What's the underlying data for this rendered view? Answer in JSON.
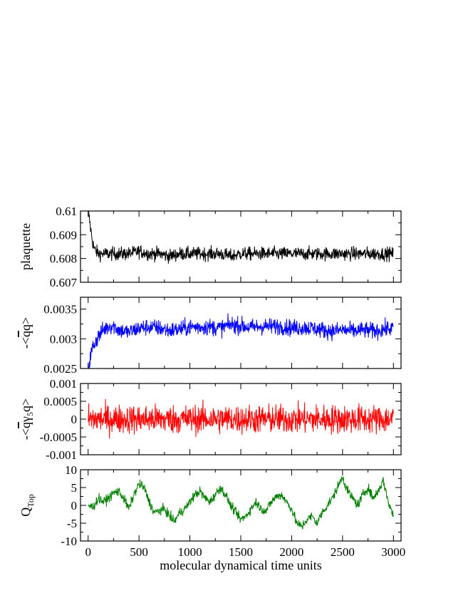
{
  "figure": {
    "xlabel": "molecular dynamical time units",
    "xlim": [
      -75,
      3075
    ],
    "xticks": [
      0,
      500,
      1000,
      1500,
      2000,
      2500,
      3000
    ],
    "xtick_labels": [
      "0",
      "500",
      "1000",
      "1500",
      "2000",
      "2500",
      "3000"
    ]
  },
  "chart_data": [
    {
      "type": "line",
      "ylabel": "plaquette",
      "ylim": [
        0.607,
        0.61
      ],
      "yticks": [
        0.607,
        0.608,
        0.609,
        0.61
      ],
      "ytick_labels": [
        "0.607",
        "0.608",
        "0.609",
        "0.61"
      ],
      "color": "#000000",
      "series": [
        {
          "x": [
            0,
            20,
            40,
            60,
            80,
            100,
            150,
            200,
            300,
            400,
            500,
            600,
            700,
            800,
            900,
            1000,
            1100,
            1200,
            1300,
            1400,
            1500,
            1600,
            1700,
            1800,
            1900,
            2000,
            2100,
            2200,
            2300,
            2400,
            2500,
            2600,
            2700,
            2800,
            2900,
            3000
          ],
          "values": [
            0.6101,
            0.6094,
            0.6088,
            0.6084,
            0.6083,
            0.6082,
            0.6082,
            0.6082,
            0.6082,
            0.6082,
            0.6083,
            0.6082,
            0.6082,
            0.6081,
            0.6082,
            0.6082,
            0.6082,
            0.6082,
            0.6082,
            0.6081,
            0.6082,
            0.6082,
            0.6082,
            0.6082,
            0.6082,
            0.6082,
            0.6082,
            0.6082,
            0.6082,
            0.6082,
            0.6082,
            0.6082,
            0.6082,
            0.6082,
            0.6082,
            0.6082
          ],
          "noise": 0.00028
        }
      ]
    },
    {
      "type": "line",
      "ylabel": "-<q̄q>",
      "ylim": [
        0.0025,
        0.0037
      ],
      "yticks": [
        0.0025,
        0.003,
        0.0035
      ],
      "ytick_labels": [
        "0.0025",
        "0.003",
        "0.0035"
      ],
      "color": "#0000ff",
      "series": [
        {
          "x": [
            0,
            25,
            50,
            100,
            150,
            200,
            250,
            300,
            400,
            500,
            600,
            700,
            800,
            900,
            1000,
            1100,
            1200,
            1300,
            1400,
            1500,
            1600,
            1700,
            1800,
            1900,
            2000,
            2100,
            2200,
            2300,
            2400,
            2500,
            2600,
            2700,
            2800,
            2900,
            3000
          ],
          "values": [
            0.0025,
            0.00272,
            0.00288,
            0.00304,
            0.00315,
            0.00321,
            0.00322,
            0.00315,
            0.00311,
            0.00318,
            0.0032,
            0.00318,
            0.00314,
            0.00316,
            0.0032,
            0.0032,
            0.0032,
            0.00318,
            0.00324,
            0.00322,
            0.00319,
            0.00321,
            0.00321,
            0.00321,
            0.00318,
            0.00319,
            0.00318,
            0.00315,
            0.00313,
            0.00315,
            0.00313,
            0.00315,
            0.00313,
            0.00316,
            0.00318
          ],
          "noise": 0.00014
        }
      ]
    },
    {
      "type": "line",
      "ylabel": "-<q̄γ5q>",
      "ylim": [
        -0.001,
        0.001
      ],
      "yticks": [
        -0.001,
        -0.0005,
        0,
        0.0005,
        0.001
      ],
      "ytick_labels": [
        "-0.001",
        "-0.0005",
        "0",
        "0.0005",
        "0.001"
      ],
      "color": "#ff0000",
      "series": [
        {
          "x": [
            0,
            500,
            1000,
            1500,
            2000,
            2500,
            3000
          ],
          "values": [
            0,
            0,
            0,
            0,
            0,
            0,
            0
          ],
          "noise": 0.0004
        }
      ]
    },
    {
      "type": "line",
      "ylabel": "QTop",
      "ylim": [
        -10,
        10
      ],
      "yticks": [
        -10,
        -5,
        0,
        5,
        10
      ],
      "ytick_labels": [
        "-10",
        "-5",
        "0",
        "5",
        "10"
      ],
      "color": "#008000",
      "series": [
        {
          "x": [
            0,
            50,
            100,
            150,
            200,
            250,
            300,
            350,
            400,
            450,
            500,
            550,
            600,
            650,
            700,
            750,
            800,
            850,
            900,
            950,
            1000,
            1050,
            1100,
            1150,
            1200,
            1250,
            1300,
            1350,
            1400,
            1450,
            1500,
            1550,
            1600,
            1650,
            1700,
            1750,
            1800,
            1850,
            1900,
            1950,
            2000,
            2050,
            2100,
            2150,
            2200,
            2250,
            2300,
            2350,
            2400,
            2450,
            2500,
            2550,
            2600,
            2650,
            2700,
            2750,
            2800,
            2850,
            2900,
            2950,
            3000
          ],
          "values": [
            0,
            -0.5,
            2,
            1,
            2,
            3.5,
            4,
            2,
            -1,
            3,
            6,
            5,
            1,
            -2,
            -1.5,
            -1,
            -3,
            -4.5,
            -2,
            -1,
            1,
            3,
            4,
            2,
            1,
            3,
            5,
            3,
            0,
            -2,
            -4,
            -3,
            -1,
            1,
            -1,
            -1.5,
            1,
            2.5,
            3,
            1,
            -1,
            -5,
            -6,
            -4,
            -3,
            -5,
            -2,
            0,
            2,
            5,
            8,
            4,
            2,
            0,
            3,
            5,
            2,
            4,
            7,
            1,
            -3
          ],
          "noise": 1.3
        }
      ]
    }
  ]
}
